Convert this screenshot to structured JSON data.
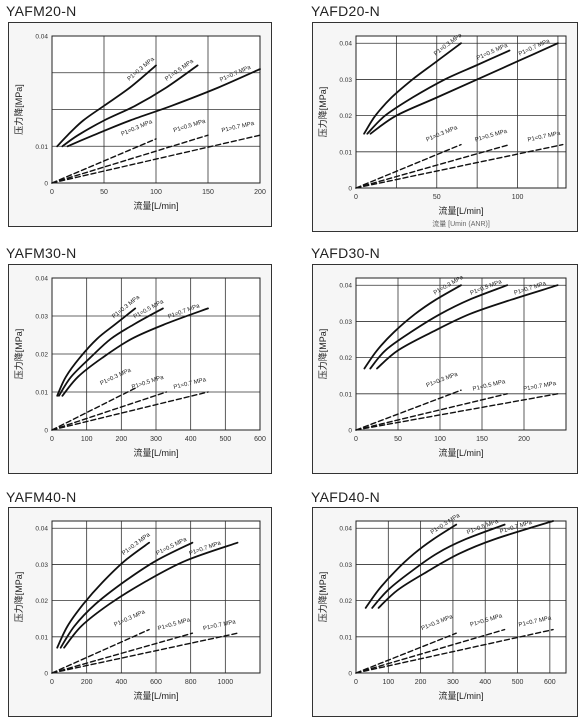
{
  "chart_data": [
    {
      "id": "yafm20",
      "type": "line",
      "title": "YAFM20-N",
      "xlabel": "流量[L/min]",
      "ylabel": "压力降[MPa]",
      "xlim": [
        0,
        200
      ],
      "xticks": [
        0,
        50,
        100,
        150,
        200
      ],
      "ylim": [
        0,
        0.04
      ],
      "yticks": [
        0,
        0.01,
        0.02,
        0.03,
        0.04
      ],
      "ytick_labels": [
        "0",
        "0.01",
        "",
        "",
        "0.04"
      ],
      "grid": true,
      "series": [
        {
          "name": "P1=0.3 MPa",
          "dash": false,
          "x": [
            5,
            15,
            30,
            50,
            75,
            100
          ],
          "y": [
            0.01,
            0.013,
            0.017,
            0.021,
            0.026,
            0.032
          ]
        },
        {
          "name": "P1=0.5 MPa",
          "dash": false,
          "x": [
            10,
            25,
            50,
            80,
            110,
            140
          ],
          "y": [
            0.01,
            0.013,
            0.017,
            0.021,
            0.026,
            0.032
          ]
        },
        {
          "name": "P1=0.7 MPa",
          "dash": false,
          "x": [
            15,
            40,
            75,
            115,
            160,
            200
          ],
          "y": [
            0.01,
            0.013,
            0.017,
            0.021,
            0.026,
            0.031
          ]
        },
        {
          "name": "P1=0.3 MPa",
          "dash": true,
          "x": [
            0,
            100
          ],
          "y": [
            0,
            0.012
          ]
        },
        {
          "name": "P1=0.5 MPa",
          "dash": true,
          "x": [
            0,
            150
          ],
          "y": [
            0,
            0.013
          ]
        },
        {
          "name": "P1=0.7 MPa",
          "dash": true,
          "x": [
            0,
            200
          ],
          "y": [
            0,
            0.013
          ]
        }
      ]
    },
    {
      "id": "yafd20",
      "type": "line",
      "title": "YAFD20-N",
      "xlabel": "流量[L/min]",
      "xlabel2": "流量 [Umin (ANR)]",
      "ylabel": "压力降[MPa]",
      "xlim": [
        0,
        130
      ],
      "xticks": [
        0,
        50,
        100
      ],
      "xgrid": [
        0,
        25,
        50,
        75,
        100,
        125
      ],
      "ylim": [
        0,
        0.042
      ],
      "yticks": [
        0,
        0.01,
        0.02,
        0.03,
        0.04
      ],
      "ytick_labels": [
        "0",
        "0.01",
        "0.02",
        "0.03",
        "0.04"
      ],
      "grid": true,
      "series": [
        {
          "name": "P1=0.3 MPa",
          "dash": false,
          "x": [
            5,
            12,
            22,
            35,
            50,
            65
          ],
          "y": [
            0.015,
            0.02,
            0.025,
            0.03,
            0.035,
            0.04
          ]
        },
        {
          "name": "P1=0.5 MPa",
          "dash": false,
          "x": [
            7,
            18,
            35,
            55,
            75,
            95
          ],
          "y": [
            0.015,
            0.02,
            0.025,
            0.03,
            0.034,
            0.038
          ]
        },
        {
          "name": "P1=0.7 MPa",
          "dash": false,
          "x": [
            9,
            25,
            50,
            75,
            100,
            125
          ],
          "y": [
            0.015,
            0.02,
            0.025,
            0.03,
            0.035,
            0.04
          ]
        },
        {
          "name": "P1=0.3 MPa",
          "dash": true,
          "x": [
            0,
            65
          ],
          "y": [
            0,
            0.012
          ]
        },
        {
          "name": "P1=0.5 MPa",
          "dash": true,
          "x": [
            0,
            95
          ],
          "y": [
            0,
            0.012
          ]
        },
        {
          "name": "P1=0.7 MPa",
          "dash": true,
          "x": [
            0,
            128
          ],
          "y": [
            0,
            0.012
          ]
        }
      ]
    },
    {
      "id": "yafm30",
      "type": "line",
      "title": "YAFM30-N",
      "xlabel": "流量[L/min]",
      "ylabel": "压力降[MPa]",
      "xlim": [
        0,
        600
      ],
      "xticks": [
        0,
        100,
        200,
        300,
        400,
        500,
        600
      ],
      "ylim": [
        0,
        0.04
      ],
      "yticks": [
        0,
        0.01,
        0.02,
        0.03,
        0.04
      ],
      "ytick_labels": [
        "0",
        "0.01",
        "0.02",
        "0.03",
        "0.04"
      ],
      "grid": true,
      "series": [
        {
          "name": "P1=0.3 MPa",
          "dash": false,
          "x": [
            15,
            40,
            80,
            130,
            185,
            240
          ],
          "y": [
            0.009,
            0.014,
            0.019,
            0.024,
            0.028,
            0.032
          ]
        },
        {
          "name": "P1=0.5 MPa",
          "dash": false,
          "x": [
            20,
            55,
            110,
            170,
            240,
            320
          ],
          "y": [
            0.009,
            0.014,
            0.019,
            0.024,
            0.028,
            0.032
          ]
        },
        {
          "name": "P1=0.7 MPa",
          "dash": false,
          "x": [
            30,
            75,
            145,
            230,
            330,
            450
          ],
          "y": [
            0.009,
            0.014,
            0.019,
            0.024,
            0.028,
            0.032
          ]
        },
        {
          "name": "P1=0.3 MPa",
          "dash": true,
          "x": [
            0,
            240
          ],
          "y": [
            0,
            0.011
          ]
        },
        {
          "name": "P1=0.5 MPa",
          "dash": true,
          "x": [
            0,
            330
          ],
          "y": [
            0,
            0.01
          ]
        },
        {
          "name": "P1=0.7 MPa",
          "dash": true,
          "x": [
            0,
            450
          ],
          "y": [
            0,
            0.01
          ]
        }
      ]
    },
    {
      "id": "yafd30",
      "type": "line",
      "title": "YAFD30-N",
      "xlabel": "流量[L/min]",
      "ylabel": "压力降[MPa]",
      "xlim": [
        0,
        250
      ],
      "xticks": [
        0,
        50,
        100,
        150,
        200
      ],
      "xgrid": [
        0,
        50,
        100,
        150,
        200,
        250
      ],
      "ylim": [
        0,
        0.042
      ],
      "yticks": [
        0,
        0.01,
        0.02,
        0.03,
        0.04
      ],
      "ytick_labels": [
        "0",
        "0.01",
        "0.02",
        "0.03",
        "0.04"
      ],
      "grid": true,
      "series": [
        {
          "name": "P1=0.3 MPa",
          "dash": false,
          "x": [
            10,
            25,
            45,
            70,
            95,
            125
          ],
          "y": [
            0.017,
            0.022,
            0.027,
            0.032,
            0.036,
            0.04
          ]
        },
        {
          "name": "P1=0.5 MPa",
          "dash": false,
          "x": [
            17,
            35,
            65,
            100,
            135,
            180
          ],
          "y": [
            0.017,
            0.022,
            0.027,
            0.032,
            0.036,
            0.04
          ]
        },
        {
          "name": "P1=0.7 MPa",
          "dash": false,
          "x": [
            25,
            50,
            90,
            135,
            185,
            240
          ],
          "y": [
            0.017,
            0.022,
            0.027,
            0.032,
            0.036,
            0.04
          ]
        },
        {
          "name": "P1=0.3 MPa",
          "dash": true,
          "x": [
            0,
            125
          ],
          "y": [
            0,
            0.011
          ]
        },
        {
          "name": "P1=0.5 MPa",
          "dash": true,
          "x": [
            0,
            180
          ],
          "y": [
            0,
            0.01
          ]
        },
        {
          "name": "P1=0.7 MPa",
          "dash": true,
          "x": [
            0,
            240
          ],
          "y": [
            0,
            0.01
          ]
        }
      ]
    },
    {
      "id": "yafm40",
      "type": "line",
      "title": "YAFM40-N",
      "xlabel": "流量[L/min]",
      "ylabel": "压力降[MPa]",
      "xlim": [
        0,
        1200
      ],
      "xticks": [
        0,
        200,
        400,
        600,
        800,
        1000
      ],
      "xgrid": [
        0,
        200,
        400,
        600,
        800,
        1000,
        1200
      ],
      "ylim": [
        0,
        0.042
      ],
      "yticks": [
        0,
        0.01,
        0.02,
        0.03,
        0.04
      ],
      "ytick_labels": [
        "0",
        "0.01",
        "0.02",
        "0.03",
        "0.04"
      ],
      "grid": true,
      "series": [
        {
          "name": "P1=0.3 MPa",
          "dash": false,
          "x": [
            30,
            90,
            180,
            290,
            420,
            560
          ],
          "y": [
            0.007,
            0.013,
            0.019,
            0.025,
            0.031,
            0.036
          ]
        },
        {
          "name": "P1=0.5 MPa",
          "dash": false,
          "x": [
            50,
            130,
            250,
            410,
            600,
            810
          ],
          "y": [
            0.007,
            0.013,
            0.019,
            0.025,
            0.031,
            0.036
          ]
        },
        {
          "name": "P1=0.7 MPa",
          "dash": false,
          "x": [
            70,
            170,
            330,
            530,
            770,
            1070
          ],
          "y": [
            0.007,
            0.013,
            0.019,
            0.025,
            0.031,
            0.036
          ]
        },
        {
          "name": "P1=0.3 MPa",
          "dash": true,
          "x": [
            0,
            560
          ],
          "y": [
            0,
            0.012
          ]
        },
        {
          "name": "P1=0.5 MPa",
          "dash": true,
          "x": [
            0,
            810
          ],
          "y": [
            0,
            0.011
          ]
        },
        {
          "name": "P1=0.7 MPa",
          "dash": true,
          "x": [
            0,
            1070
          ],
          "y": [
            0,
            0.011
          ]
        }
      ]
    },
    {
      "id": "yafd40",
      "type": "line",
      "title": "YAFD40-N",
      "xlabel": "流量[L/min]",
      "ylabel": "压力降[MPa]",
      "xlim": [
        0,
        650
      ],
      "xticks": [
        0,
        100,
        200,
        300,
        400,
        500,
        600
      ],
      "ylim": [
        0,
        0.042
      ],
      "yticks": [
        0,
        0.01,
        0.02,
        0.03,
        0.04
      ],
      "ytick_labels": [
        "0",
        "0.01",
        "0.02",
        "0.03",
        "0.04"
      ],
      "grid": true,
      "series": [
        {
          "name": "P1=0.3 MPa",
          "dash": false,
          "x": [
            30,
            70,
            120,
            180,
            240,
            310
          ],
          "y": [
            0.018,
            0.023,
            0.028,
            0.033,
            0.037,
            0.041
          ]
        },
        {
          "name": "P1=0.5 MPa",
          "dash": false,
          "x": [
            50,
            100,
            170,
            250,
            340,
            460
          ],
          "y": [
            0.018,
            0.023,
            0.028,
            0.033,
            0.037,
            0.041
          ]
        },
        {
          "name": "P1=0.7 MPa",
          "dash": false,
          "x": [
            70,
            130,
            220,
            320,
            430,
            610
          ],
          "y": [
            0.018,
            0.023,
            0.028,
            0.033,
            0.037,
            0.042
          ]
        },
        {
          "name": "P1=0.3 MPa",
          "dash": true,
          "x": [
            0,
            310
          ],
          "y": [
            0,
            0.011
          ]
        },
        {
          "name": "P1=0.5 MPa",
          "dash": true,
          "x": [
            0,
            460
          ],
          "y": [
            0,
            0.012
          ]
        },
        {
          "name": "P1=0.7 MPa",
          "dash": true,
          "x": [
            0,
            610
          ],
          "y": [
            0,
            0.012
          ]
        }
      ]
    }
  ]
}
